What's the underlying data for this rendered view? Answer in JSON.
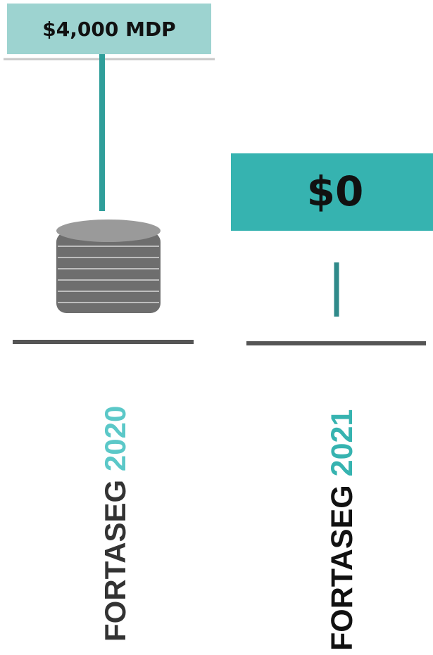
{
  "items": [
    {
      "amount": "$4,000 MDP",
      "name": "FORTASEG",
      "year": "2020"
    },
    {
      "amount": "$0",
      "name": "FORTASEG",
      "year": "2021"
    }
  ]
}
